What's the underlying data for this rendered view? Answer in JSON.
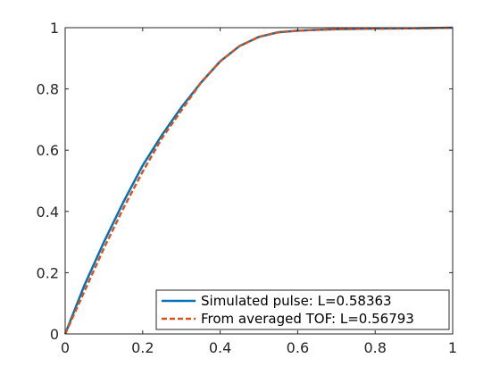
{
  "chart_data": {
    "type": "line",
    "title": "",
    "xlabel": "",
    "ylabel": "",
    "xlim": [
      0,
      1
    ],
    "ylim": [
      0,
      1
    ],
    "x_ticks": [
      0,
      0.2,
      0.4,
      0.6,
      0.8,
      1
    ],
    "y_ticks": [
      0,
      0.2,
      0.4,
      0.6,
      0.8,
      1
    ],
    "x_tick_labels": [
      "0",
      "0.2",
      "0.4",
      "0.6",
      "0.8",
      "1"
    ],
    "y_tick_labels": [
      "0",
      "0.2",
      "0.4",
      "0.6",
      "0.8",
      "1"
    ],
    "grid": false,
    "legend_position": "bottom-right",
    "series": [
      {
        "name": "Simulated pulse: L=0.58363",
        "color": "#0072BD",
        "style": "solid",
        "x": [
          0,
          0.05,
          0.1,
          0.15,
          0.2,
          0.25,
          0.3,
          0.35,
          0.4,
          0.45,
          0.5,
          0.55,
          0.6,
          0.65,
          0.7,
          0.8,
          0.9,
          1.0
        ],
        "y": [
          0,
          0.16,
          0.3,
          0.43,
          0.55,
          0.65,
          0.74,
          0.82,
          0.89,
          0.94,
          0.97,
          0.985,
          0.99,
          0.993,
          0.995,
          0.997,
          0.998,
          1.0
        ]
      },
      {
        "name": "From averaged TOF: L=0.56793",
        "color": "#D95319",
        "style": "dashed",
        "x": [
          0,
          0.05,
          0.1,
          0.15,
          0.2,
          0.25,
          0.3,
          0.35,
          0.4,
          0.45,
          0.5,
          0.55,
          0.6,
          0.65,
          0.7,
          0.8,
          0.9,
          1.0
        ],
        "y": [
          0,
          0.14,
          0.28,
          0.41,
          0.53,
          0.64,
          0.73,
          0.82,
          0.89,
          0.94,
          0.97,
          0.985,
          0.99,
          0.993,
          0.995,
          0.997,
          0.998,
          1.0
        ]
      }
    ]
  }
}
